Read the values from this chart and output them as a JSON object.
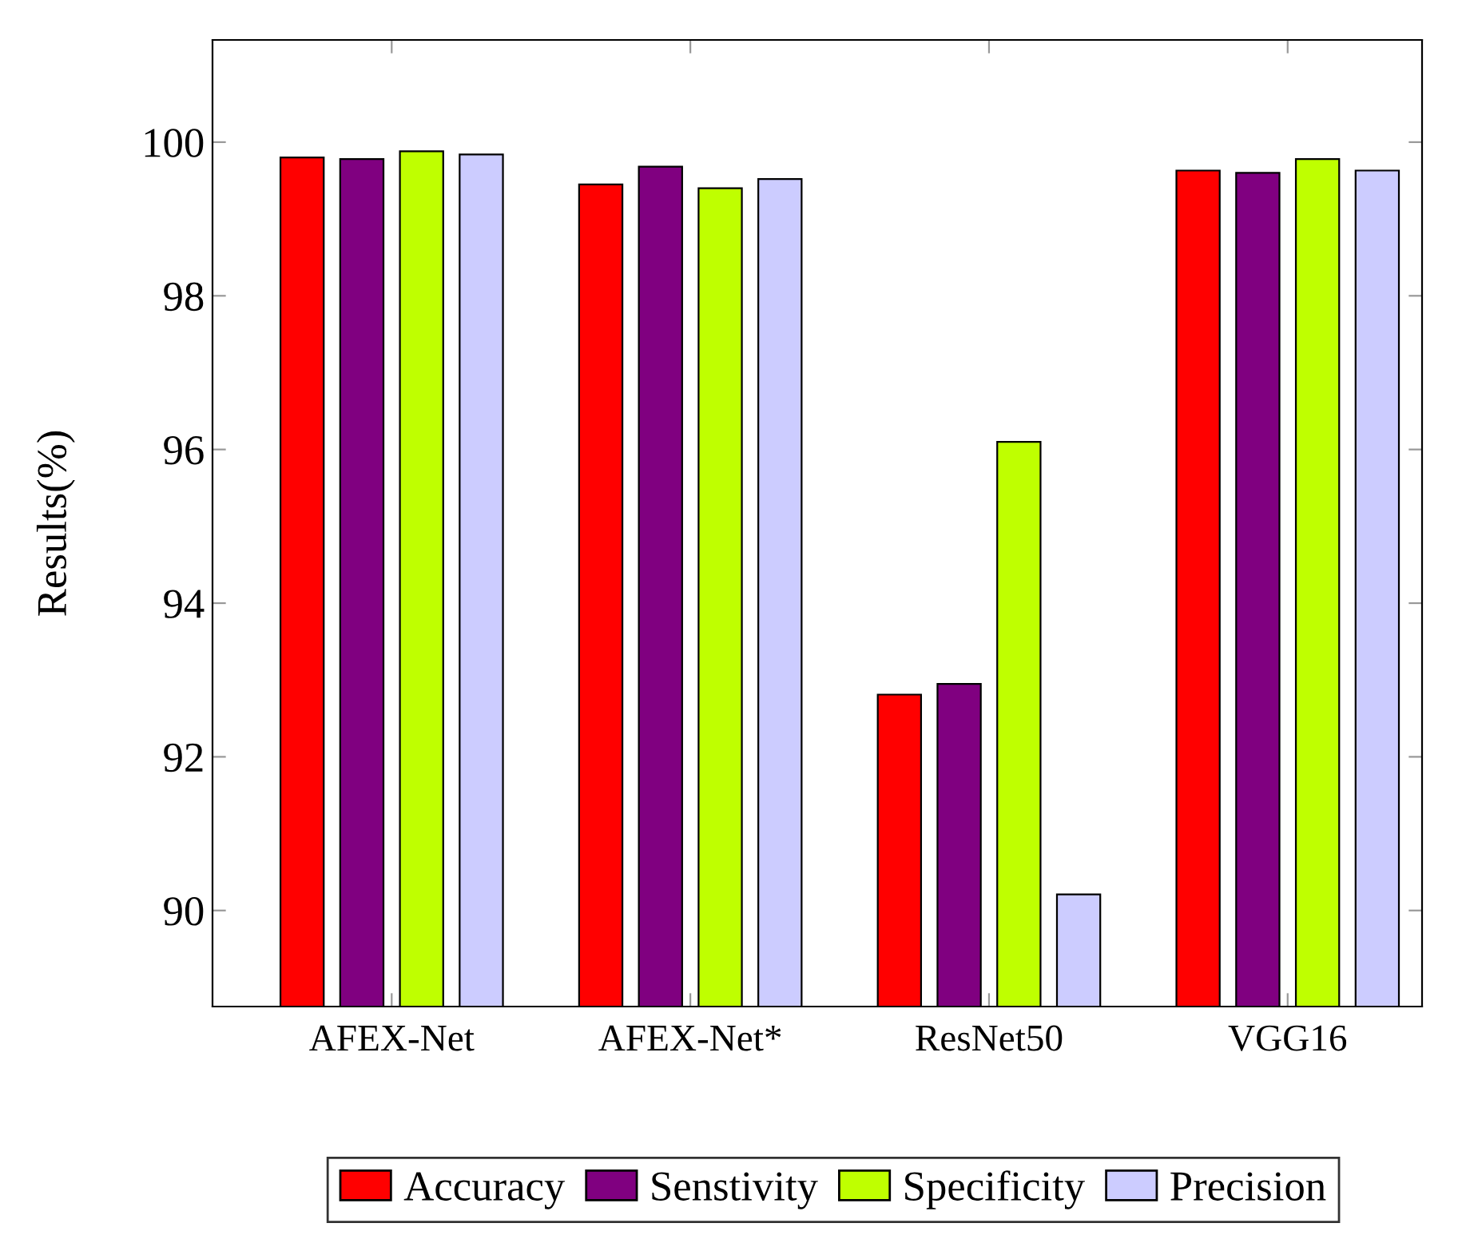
{
  "chart_data": {
    "type": "bar",
    "ylabel": "Results(%)",
    "categories": [
      "AFEX-Net",
      "AFEX-Net*",
      "ResNet50",
      "VGG16"
    ],
    "series": [
      {
        "name": "Accuracy",
        "color": "#ff0000",
        "values": [
          99.8,
          99.45,
          92.81,
          99.63
        ]
      },
      {
        "name": "Senstivity",
        "color": "#800080",
        "values": [
          99.78,
          99.68,
          92.95,
          99.6
        ]
      },
      {
        "name": "Specificity",
        "color": "#bfff00",
        "values": [
          99.88,
          99.4,
          96.1,
          99.78
        ]
      },
      {
        "name": "Precision",
        "color": "#ccccff",
        "values": [
          99.84,
          99.52,
          90.21,
          99.63
        ]
      }
    ],
    "ylim": [
      88.75,
      101.33
    ],
    "yticks": [
      90,
      92,
      94,
      96,
      98,
      100
    ],
    "grid": false,
    "legend": "bottom"
  }
}
